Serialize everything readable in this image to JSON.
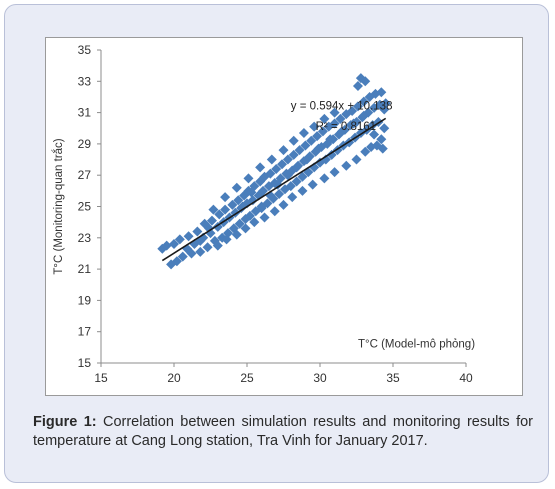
{
  "chart_data": {
    "type": "scatter",
    "title": "",
    "xlabel": "T°C (Model-mô phỏng)",
    "ylabel": "T°C (Monitoring-quan trắc)",
    "xlim": [
      15,
      40
    ],
    "ylim": [
      15,
      35
    ],
    "xticks": [
      "15",
      "20",
      "25",
      "30",
      "35",
      "40"
    ],
    "yticks": [
      "15",
      "17",
      "19",
      "21",
      "23",
      "25",
      "27",
      "29",
      "31",
      "33",
      "35"
    ],
    "equation_label": "y = 0.594x + 10.138",
    "r2_label": "R² = 0.8161",
    "trendline": {
      "slope": 0.594,
      "intercept": 10.138,
      "x_range": [
        19.2,
        34.5
      ]
    },
    "marker": "diamond",
    "marker_color": "#4a7ebb",
    "trendline_color": "#1a1a1a",
    "grid": false,
    "points": [
      [
        19.2,
        22.3
      ],
      [
        19.5,
        22.5
      ],
      [
        19.8,
        21.3
      ],
      [
        20.0,
        22.6
      ],
      [
        20.2,
        21.5
      ],
      [
        20.4,
        22.9
      ],
      [
        20.6,
        21.8
      ],
      [
        20.9,
        22.3
      ],
      [
        21.0,
        23.1
      ],
      [
        21.2,
        22.0
      ],
      [
        21.4,
        22.6
      ],
      [
        21.6,
        23.4
      ],
      [
        21.8,
        22.1
      ],
      [
        22.0,
        23.0
      ],
      [
        22.1,
        23.9
      ],
      [
        22.3,
        22.4
      ],
      [
        22.5,
        23.3
      ],
      [
        22.6,
        24.1
      ],
      [
        22.8,
        22.8
      ],
      [
        23.0,
        23.7
      ],
      [
        23.1,
        24.5
      ],
      [
        23.3,
        23.0
      ],
      [
        23.4,
        24.0
      ],
      [
        23.5,
        24.8
      ],
      [
        23.7,
        23.3
      ],
      [
        23.8,
        24.3
      ],
      [
        24.0,
        25.1
      ],
      [
        24.1,
        23.6
      ],
      [
        24.2,
        24.6
      ],
      [
        24.4,
        25.4
      ],
      [
        24.5,
        23.9
      ],
      [
        24.6,
        24.9
      ],
      [
        24.8,
        25.7
      ],
      [
        24.9,
        24.2
      ],
      [
        25.0,
        25.2
      ],
      [
        25.1,
        26.0
      ],
      [
        25.2,
        24.4
      ],
      [
        25.4,
        25.4
      ],
      [
        25.5,
        26.3
      ],
      [
        25.6,
        24.7
      ],
      [
        25.8,
        25.7
      ],
      [
        25.9,
        26.6
      ],
      [
        26.0,
        25.0
      ],
      [
        26.1,
        26.0
      ],
      [
        26.2,
        26.9
      ],
      [
        26.4,
        25.2
      ],
      [
        26.5,
        26.3
      ],
      [
        26.6,
        27.1
      ],
      [
        26.8,
        25.5
      ],
      [
        26.9,
        26.5
      ],
      [
        27.0,
        27.4
      ],
      [
        27.2,
        25.8
      ],
      [
        27.3,
        26.8
      ],
      [
        27.4,
        27.7
      ],
      [
        27.6,
        26.1
      ],
      [
        27.7,
        27.1
      ],
      [
        27.8,
        28.0
      ],
      [
        28.0,
        26.3
      ],
      [
        28.1,
        27.3
      ],
      [
        28.2,
        28.3
      ],
      [
        28.4,
        26.6
      ],
      [
        28.5,
        27.6
      ],
      [
        28.6,
        28.6
      ],
      [
        28.8,
        26.9
      ],
      [
        28.9,
        27.9
      ],
      [
        29.0,
        28.9
      ],
      [
        29.2,
        27.2
      ],
      [
        29.3,
        28.2
      ],
      [
        29.4,
        29.2
      ],
      [
        29.6,
        27.5
      ],
      [
        29.7,
        28.5
      ],
      [
        29.8,
        29.5
      ],
      [
        30.0,
        27.8
      ],
      [
        30.1,
        28.8
      ],
      [
        30.2,
        29.8
      ],
      [
        30.4,
        28.0
      ],
      [
        30.5,
        29.0
      ],
      [
        30.6,
        30.1
      ],
      [
        30.8,
        28.3
      ],
      [
        30.9,
        29.3
      ],
      [
        31.0,
        30.3
      ],
      [
        31.2,
        28.6
      ],
      [
        31.3,
        29.6
      ],
      [
        31.4,
        30.6
      ],
      [
        31.6,
        28.9
      ],
      [
        31.7,
        29.9
      ],
      [
        31.8,
        30.9
      ],
      [
        32.0,
        29.1
      ],
      [
        32.1,
        30.2
      ],
      [
        32.2,
        31.1
      ],
      [
        32.4,
        29.4
      ],
      [
        32.5,
        30.4
      ],
      [
        32.6,
        31.4
      ],
      [
        32.8,
        29.7
      ],
      [
        32.9,
        30.7
      ],
      [
        33.0,
        31.7
      ],
      [
        33.1,
        28.5
      ],
      [
        33.2,
        29.9
      ],
      [
        33.3,
        31.0
      ],
      [
        33.4,
        32.0
      ],
      [
        33.5,
        28.8
      ],
      [
        33.6,
        30.2
      ],
      [
        33.7,
        31.3
      ],
      [
        33.8,
        32.2
      ],
      [
        33.9,
        28.9
      ],
      [
        34.0,
        30.4
      ],
      [
        34.1,
        31.5
      ],
      [
        34.2,
        32.3
      ],
      [
        34.3,
        28.7
      ],
      [
        34.4,
        30.0
      ],
      [
        34.5,
        31.6
      ],
      [
        32.8,
        33.2
      ],
      [
        33.1,
        33.0
      ],
      [
        32.6,
        32.7
      ],
      [
        23.0,
        22.5
      ],
      [
        23.6,
        22.9
      ],
      [
        24.3,
        23.2
      ],
      [
        24.9,
        23.6
      ],
      [
        25.5,
        24.0
      ],
      [
        26.2,
        24.3
      ],
      [
        26.9,
        24.7
      ],
      [
        27.5,
        25.1
      ],
      [
        28.1,
        25.6
      ],
      [
        28.8,
        26.0
      ],
      [
        29.5,
        26.4
      ],
      [
        30.3,
        26.8
      ],
      [
        31.0,
        27.2
      ],
      [
        31.8,
        27.6
      ],
      [
        32.5,
        28.0
      ],
      [
        22.7,
        24.8
      ],
      [
        23.5,
        25.6
      ],
      [
        24.3,
        26.2
      ],
      [
        25.1,
        26.8
      ],
      [
        25.9,
        27.5
      ],
      [
        26.7,
        28.0
      ],
      [
        27.5,
        28.6
      ],
      [
        28.2,
        29.2
      ],
      [
        28.9,
        29.7
      ],
      [
        29.6,
        30.1
      ],
      [
        30.3,
        30.6
      ],
      [
        31.0,
        31.0
      ],
      [
        21.8,
        22.8
      ],
      [
        22.4,
        23.6
      ],
      [
        24.7,
        25.0
      ],
      [
        25.3,
        25.9
      ],
      [
        26.0,
        24.9
      ],
      [
        26.6,
        25.7
      ],
      [
        27.1,
        26.4
      ],
      [
        27.8,
        27.0
      ],
      [
        28.4,
        27.5
      ],
      [
        29.1,
        28.0
      ],
      [
        29.9,
        28.7
      ],
      [
        30.7,
        29.3
      ],
      [
        31.5,
        29.8
      ],
      [
        32.3,
        30.3
      ],
      [
        33.0,
        30.8
      ],
      [
        33.7,
        29.6
      ],
      [
        34.2,
        29.3
      ],
      [
        34.4,
        31.2
      ]
    ]
  },
  "caption": {
    "lead": "Figure 1:",
    "text": " Correlation between simulation results and monitoring results for temperature at Cang Long station, Tra Vinh for January 2017."
  }
}
